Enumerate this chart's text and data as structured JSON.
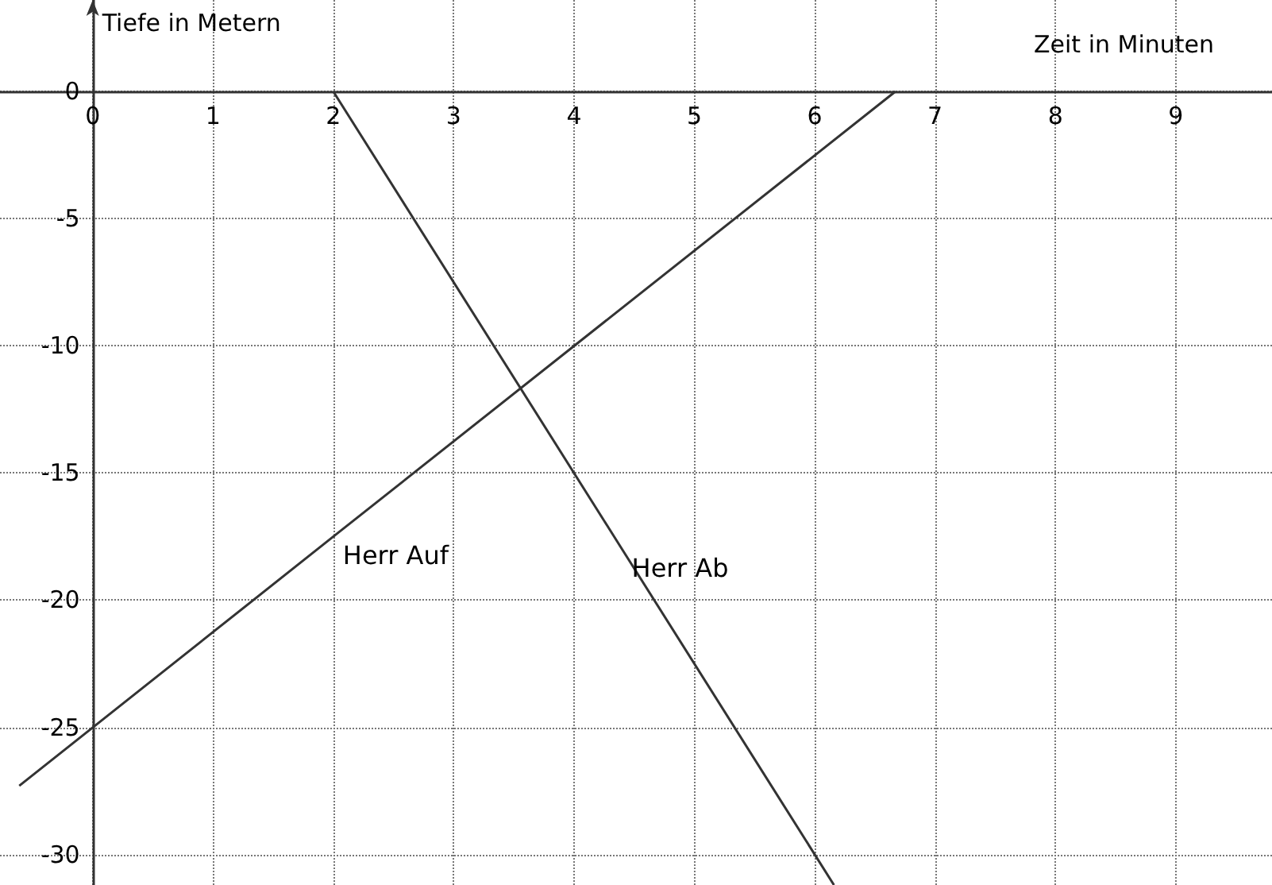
{
  "chart_data": {
    "type": "line",
    "xlabel": "Zeit in Minuten",
    "ylabel": "Tiefe in Metern",
    "series": [
      {
        "name": "Herr Auf",
        "color": "#333333",
        "x": [
          -0.61,
          2,
          6.67
        ],
        "values": [
          -27.3,
          -17.5,
          0
        ]
      },
      {
        "name": "Herr Ab",
        "color": "#333333",
        "x": [
          2,
          4.4,
          6.16
        ],
        "values": [
          0,
          -18,
          -31.2
        ]
      }
    ],
    "xlim": [
      -0.77,
      9.8
    ],
    "ylim": [
      -31.2,
      3.6
    ],
    "xticks": [
      0,
      1,
      2,
      3,
      4,
      5,
      6,
      7,
      8,
      9
    ],
    "yticks": [
      -30,
      -25,
      -20,
      -15,
      -10,
      -5,
      0
    ],
    "grid": true,
    "marker": "none",
    "line_style": "solid"
  }
}
